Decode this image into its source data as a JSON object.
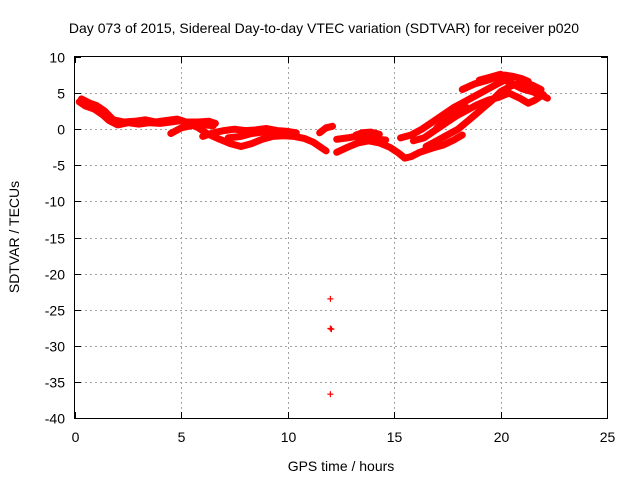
{
  "chart_data": {
    "type": "scatter",
    "title": "Day 073 of 2015, Sidereal Day-to-day VTEC variation (SDTVAR) for receiver p020",
    "xlabel": "GPS time / hours",
    "ylabel": "SDTVAR / TECUs",
    "xlim": [
      0,
      25
    ],
    "ylim": [
      -40,
      10
    ],
    "xticks": [
      0,
      5,
      10,
      15,
      20,
      25
    ],
    "yticks": [
      -40,
      -35,
      -30,
      -25,
      -20,
      -15,
      -10,
      -5,
      0,
      5,
      10
    ],
    "grid": true,
    "marker": "+",
    "series": [
      {
        "name": "p020",
        "color": "#ff0000",
        "polylines": [
          [
            [
              0.2,
              3.8
            ],
            [
              0.5,
              3.2
            ],
            [
              0.9,
              2.8
            ],
            [
              1.3,
              2.0
            ],
            [
              1.6,
              1.2
            ],
            [
              2.0,
              0.6
            ],
            [
              2.5,
              0.9
            ],
            [
              3.0,
              0.7
            ],
            [
              3.5,
              0.9
            ],
            [
              4.0,
              0.8
            ],
            [
              4.5,
              1.0
            ],
            [
              5.0,
              1.2
            ],
            [
              5.4,
              0.7
            ],
            [
              5.8,
              0.2
            ],
            [
              6.2,
              -0.6
            ],
            [
              6.8,
              -1.4
            ],
            [
              7.3,
              -2.0
            ],
            [
              7.8,
              -2.4
            ],
            [
              8.3,
              -2.0
            ],
            [
              8.8,
              -1.4
            ],
            [
              9.3,
              -1.0
            ],
            [
              9.8,
              -0.9
            ],
            [
              10.3,
              -1.0
            ],
            [
              10.8,
              -1.3
            ],
            [
              11.2,
              -1.8
            ],
            [
              11.6,
              -2.6
            ],
            [
              11.8,
              -3.0
            ]
          ],
          [
            [
              0.3,
              4.2
            ],
            [
              0.7,
              3.6
            ],
            [
              1.0,
              3.3
            ],
            [
              1.4,
              2.5
            ],
            [
              1.8,
              1.3
            ],
            [
              2.3,
              1.0
            ],
            [
              2.8,
              1.1
            ],
            [
              3.3,
              1.3
            ],
            [
              3.8,
              1.0
            ],
            [
              4.3,
              1.2
            ],
            [
              4.8,
              1.4
            ],
            [
              5.2,
              1.0
            ],
            [
              5.8,
              1.0
            ],
            [
              6.3,
              1.1
            ],
            [
              6.6,
              0.8
            ]
          ],
          [
            [
              4.5,
              -0.6
            ],
            [
              5.0,
              0.2
            ],
            [
              5.5,
              0.5
            ],
            [
              6.0,
              0.6
            ],
            [
              6.5,
              0.5
            ]
          ],
          [
            [
              6.0,
              -1.0
            ],
            [
              6.5,
              -0.5
            ],
            [
              7.0,
              -0.2
            ],
            [
              7.5,
              0.0
            ],
            [
              8.0,
              -0.2
            ],
            [
              8.5,
              -0.1
            ],
            [
              9.0,
              0.1
            ],
            [
              9.5,
              -0.2
            ],
            [
              10.0,
              -0.3
            ],
            [
              10.4,
              -0.5
            ]
          ],
          [
            [
              7.2,
              -1.2
            ],
            [
              7.8,
              -1.0
            ],
            [
              8.3,
              -0.6
            ],
            [
              8.8,
              -0.4
            ],
            [
              9.2,
              -0.5
            ],
            [
              9.6,
              -0.6
            ]
          ],
          [
            [
              11.5,
              -0.5
            ],
            [
              11.8,
              0.2
            ],
            [
              12.1,
              0.4
            ]
          ],
          [
            [
              12.3,
              -3.2
            ],
            [
              12.8,
              -2.5
            ],
            [
              13.3,
              -1.9
            ],
            [
              13.8,
              -1.6
            ],
            [
              14.3,
              -1.9
            ],
            [
              14.8,
              -2.5
            ],
            [
              15.2,
              -3.3
            ],
            [
              15.5,
              -4.0
            ],
            [
              15.8,
              -3.8
            ],
            [
              16.2,
              -3.2
            ],
            [
              16.8,
              -2.6
            ],
            [
              17.3,
              -2.2
            ],
            [
              17.8,
              -1.5
            ],
            [
              18.2,
              -0.8
            ]
          ],
          [
            [
              12.3,
              -1.4
            ],
            [
              12.8,
              -1.2
            ],
            [
              13.2,
              -1.0
            ],
            [
              13.7,
              -1.3
            ],
            [
              14.2,
              -1.4
            ],
            [
              14.6,
              -1.5
            ]
          ],
          [
            [
              13.2,
              -0.8
            ],
            [
              13.5,
              -0.5
            ],
            [
              13.9,
              -0.4
            ],
            [
              14.3,
              -0.7
            ]
          ],
          [
            [
              15.3,
              -1.2
            ],
            [
              15.8,
              -0.8
            ],
            [
              16.3,
              0.0
            ],
            [
              16.8,
              1.0
            ],
            [
              17.3,
              2.0
            ],
            [
              17.8,
              3.0
            ],
            [
              18.3,
              3.8
            ],
            [
              18.8,
              4.6
            ],
            [
              19.3,
              5.4
            ],
            [
              19.8,
              6.2
            ],
            [
              20.2,
              6.8
            ],
            [
              20.6,
              6.2
            ],
            [
              21.0,
              5.6
            ],
            [
              21.5,
              5.2
            ],
            [
              22.0,
              4.6
            ],
            [
              22.2,
              4.3
            ]
          ],
          [
            [
              15.9,
              -1.6
            ],
            [
              16.4,
              -1.2
            ],
            [
              16.9,
              -0.2
            ],
            [
              17.4,
              0.8
            ],
            [
              17.9,
              1.8
            ],
            [
              18.4,
              2.6
            ],
            [
              18.9,
              3.4
            ],
            [
              19.4,
              4.0
            ],
            [
              19.9,
              4.4
            ],
            [
              20.4,
              5.0
            ],
            [
              20.9,
              4.3
            ],
            [
              21.3,
              3.6
            ],
            [
              21.6,
              4.0
            ],
            [
              22.0,
              4.8
            ]
          ],
          [
            [
              16.5,
              -2.4
            ],
            [
              17.0,
              -1.6
            ],
            [
              17.5,
              -0.8
            ],
            [
              18.0,
              0.0
            ],
            [
              18.4,
              1.0
            ],
            [
              18.8,
              2.0
            ],
            [
              19.2,
              3.0
            ],
            [
              19.6,
              4.0
            ],
            [
              20.0,
              5.2
            ],
            [
              20.5,
              6.0
            ],
            [
              21.0,
              6.5
            ],
            [
              21.5,
              6.1
            ],
            [
              21.9,
              5.5
            ]
          ],
          [
            [
              17.0,
              0.2
            ],
            [
              17.4,
              1.2
            ],
            [
              17.9,
              2.2
            ],
            [
              18.4,
              3.0
            ]
          ],
          [
            [
              18.2,
              5.5
            ],
            [
              18.8,
              6.3
            ],
            [
              19.3,
              6.7
            ],
            [
              19.8,
              7.2
            ],
            [
              20.2,
              7.5
            ],
            [
              20.6,
              7.3
            ],
            [
              21.0,
              7.0
            ],
            [
              21.3,
              6.6
            ]
          ],
          [
            [
              19.0,
              6.8
            ],
            [
              19.5,
              7.2
            ],
            [
              20.0,
              7.6
            ],
            [
              20.5,
              6.9
            ]
          ]
        ],
        "isolated_points": [
          [
            12.0,
            -23.5
          ],
          [
            12.0,
            -27.6
          ],
          [
            12.05,
            -27.7
          ],
          [
            12.0,
            -36.7
          ]
        ]
      }
    ]
  }
}
